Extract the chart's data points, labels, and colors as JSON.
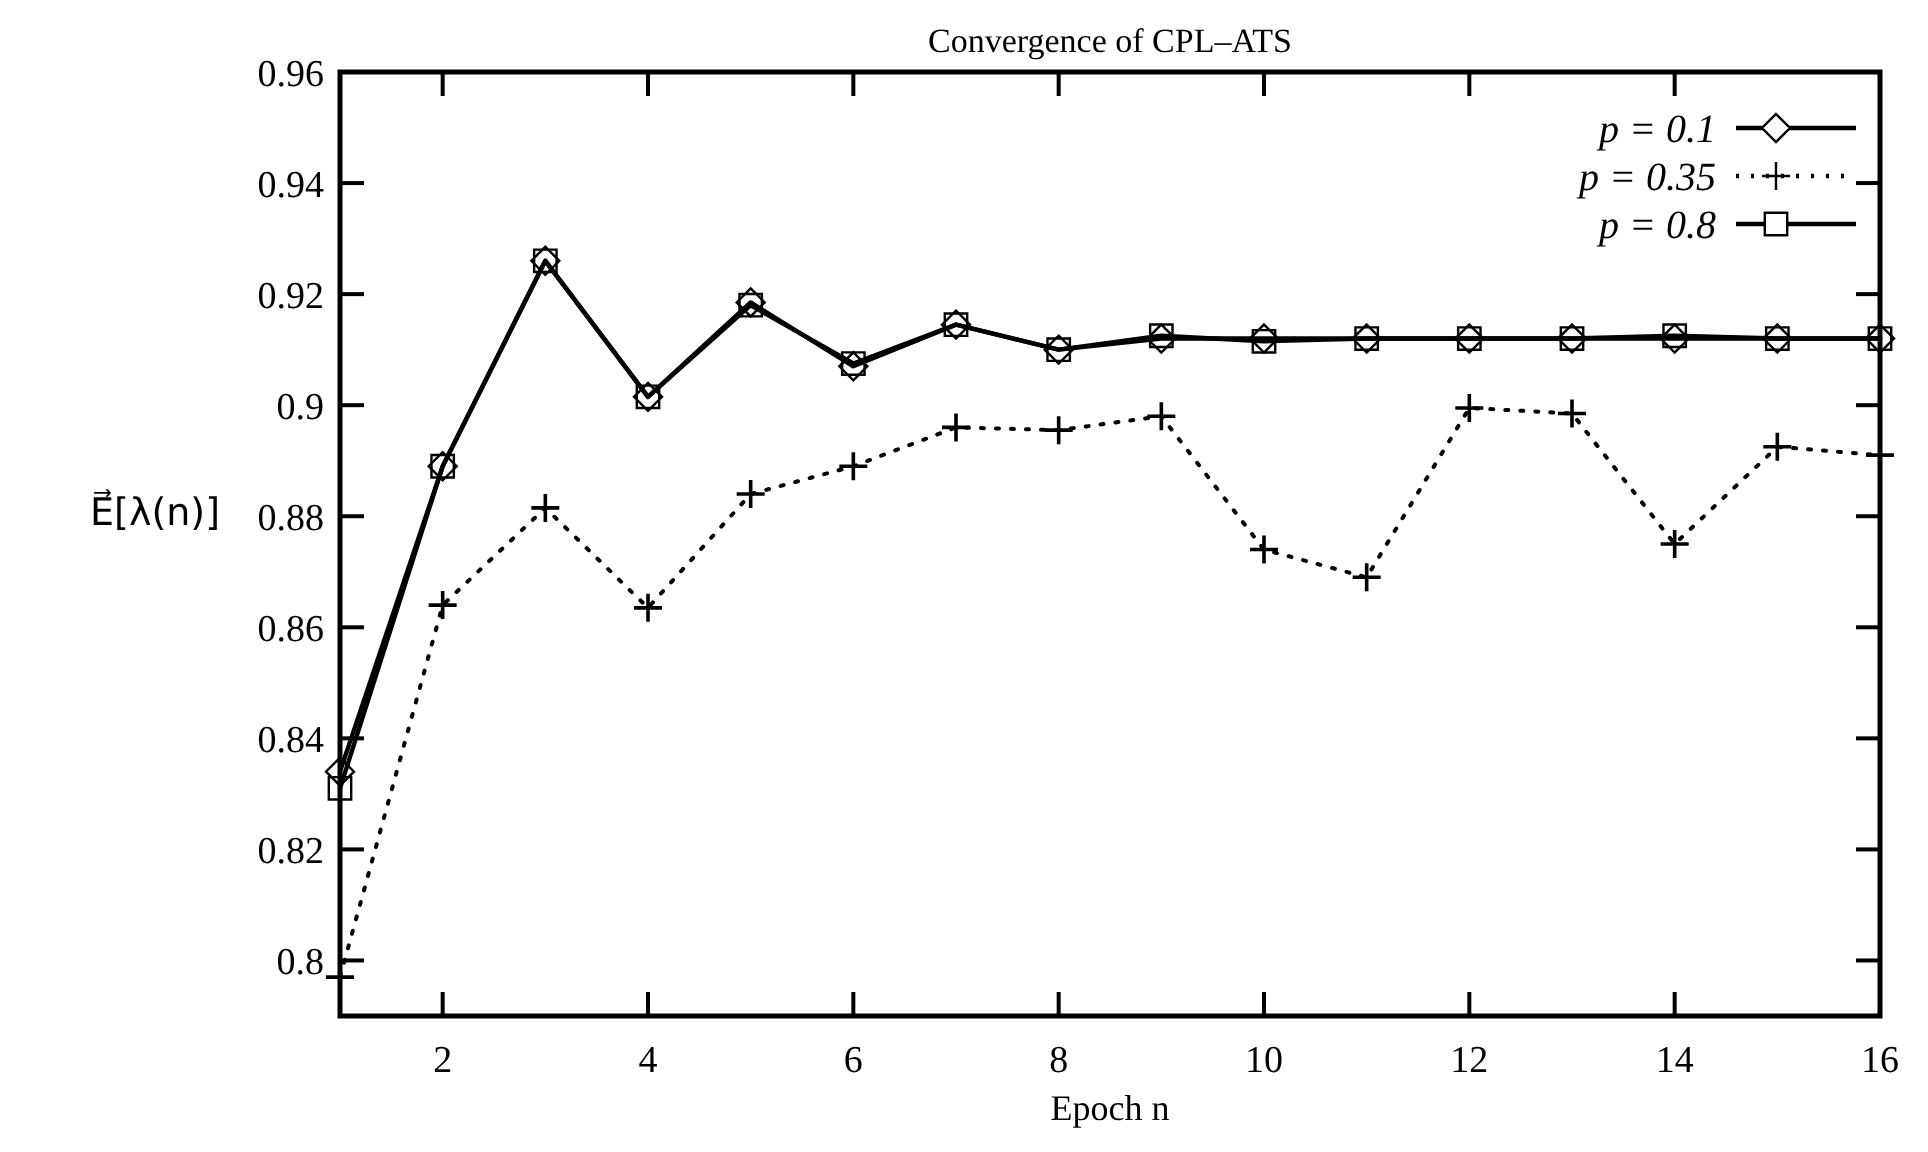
{
  "chart_data": {
    "type": "line",
    "title": "Convergence of CPL–ATS",
    "xlabel": "Epoch n",
    "ylabel": "E⃗[λ(n)]",
    "x": [
      1,
      2,
      3,
      4,
      5,
      6,
      7,
      8,
      9,
      10,
      11,
      12,
      13,
      14,
      15,
      16
    ],
    "series": [
      {
        "name": "p = 0.1",
        "color": "#000000",
        "marker": "diamond",
        "line_style": "solid",
        "values": [
          0.834,
          0.889,
          0.926,
          0.9015,
          0.9185,
          0.907,
          0.9145,
          0.91,
          0.912,
          0.912,
          0.912,
          0.912,
          0.912,
          0.912,
          0.912,
          0.912
        ]
      },
      {
        "name": "p = 0.35",
        "color": "#000000",
        "marker": "cross",
        "line_style": "dotted",
        "values": [
          0.797,
          0.864,
          0.8815,
          0.8635,
          0.884,
          0.889,
          0.896,
          0.8955,
          0.898,
          0.874,
          0.869,
          0.8995,
          0.8985,
          0.875,
          0.8925,
          0.891
        ]
      },
      {
        "name": "p = 0.8",
        "color": "#000000",
        "marker": "square",
        "line_style": "solid",
        "values": [
          0.831,
          0.889,
          0.926,
          0.9015,
          0.918,
          0.9075,
          0.9145,
          0.91,
          0.9125,
          0.9115,
          0.912,
          0.912,
          0.912,
          0.9125,
          0.912,
          0.912
        ]
      }
    ],
    "xlim": [
      1,
      16
    ],
    "xticks": [
      2,
      4,
      6,
      8,
      10,
      12,
      14,
      16
    ],
    "ylim": [
      0.79,
      0.96
    ],
    "yticks": [
      0.8,
      0.82,
      0.84,
      0.86,
      0.88,
      0.9,
      0.92,
      0.94,
      0.96
    ],
    "grid": false,
    "legend": "top right"
  }
}
